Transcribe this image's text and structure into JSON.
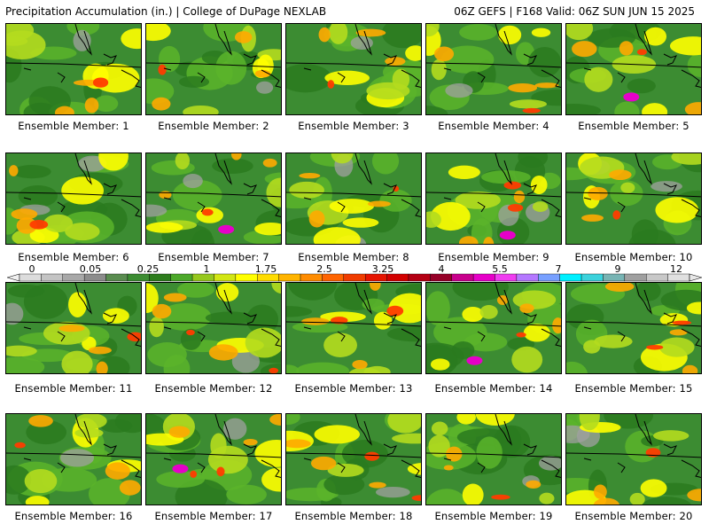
{
  "header": {
    "left": "Precipitation Accumulation (in.) | College of DuPage NEXLAB",
    "right": "06Z GEFS | F168 Valid: 06Z SUN JUN 15 2025"
  },
  "members": [
    {
      "label": "Ensemble Member: 1"
    },
    {
      "label": "Ensemble Member: 2"
    },
    {
      "label": "Ensemble Member: 3"
    },
    {
      "label": "Ensemble Member: 4"
    },
    {
      "label": "Ensemble Member: 5"
    },
    {
      "label": "Ensemble Member: 6"
    },
    {
      "label": "Ensemble Member: 7"
    },
    {
      "label": "Ensemble Member: 8"
    },
    {
      "label": "Ensemble Member: 9"
    },
    {
      "label": "Ensemble Member: 10"
    },
    {
      "label": "Ensemble Member: 11"
    },
    {
      "label": "Ensemble Member: 12"
    },
    {
      "label": "Ensemble Member: 13"
    },
    {
      "label": "Ensemble Member: 14"
    },
    {
      "label": "Ensemble Member: 15"
    },
    {
      "label": "Ensemble Member: 16"
    },
    {
      "label": "Ensemble Member: 17"
    },
    {
      "label": "Ensemble Member: 18"
    },
    {
      "label": "Ensemble Member: 19"
    },
    {
      "label": "Ensemble Member: 20"
    }
  ],
  "colorbar": {
    "labels": [
      "0",
      "0.05",
      "0.25",
      "1",
      "1.75",
      "2.5",
      "3.25",
      "4",
      "5.5",
      "7",
      "9",
      "12"
    ],
    "colors": [
      "#dcdcdc",
      "#c4c4c4",
      "#a8a8a8",
      "#8c8c8c",
      "#5a8c50",
      "#3c8c32",
      "#2e7d1e",
      "#4ca82a",
      "#96c81e",
      "#d2e614",
      "#ffff00",
      "#ffdc00",
      "#ffb400",
      "#ff8c00",
      "#ff6400",
      "#f03c00",
      "#e61400",
      "#d20000",
      "#b40014",
      "#960028",
      "#c8008c",
      "#e600c8",
      "#f03cf0",
      "#b478ff",
      "#78a0ff",
      "#00f0ff",
      "#3cd2dc",
      "#78b4b4",
      "#a0a0a0",
      "#c8c8c8",
      "#e0e0e0"
    ]
  },
  "palette": {
    "base": "#3c8c32",
    "green_dark": "#2a7a1e",
    "green_light": "#5ab42a",
    "yellow_green": "#b4dc1e",
    "yellow": "#ffff00",
    "orange": "#ffaa00",
    "red": "#ff3c00",
    "magenta": "#e600c8",
    "gray": "#a0a0a0"
  }
}
